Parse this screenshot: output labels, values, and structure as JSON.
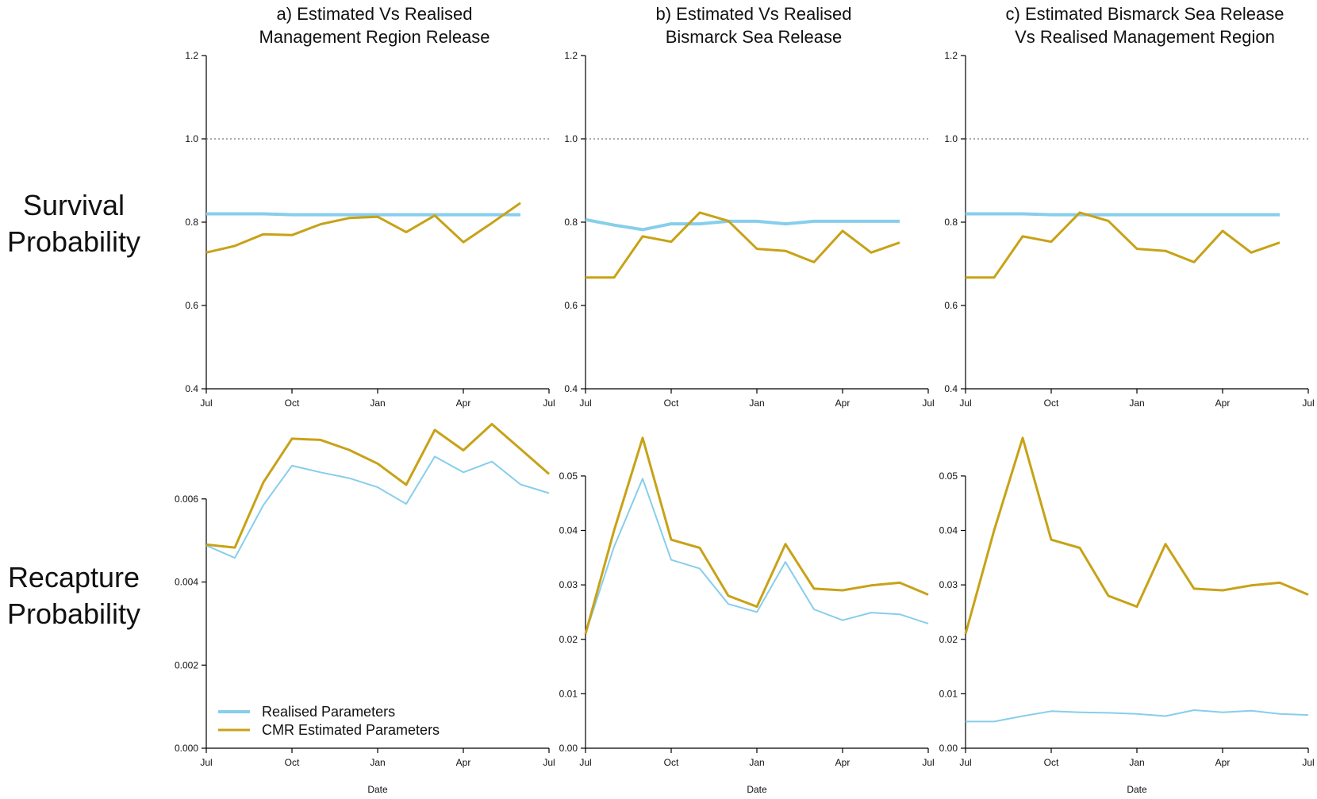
{
  "colors": {
    "realised": "#87CEEB",
    "estimated": "#C8A217",
    "axis": "#000000",
    "reference": "#777777"
  },
  "row_labels": [
    {
      "line1": "Survival",
      "line2": "Probability"
    },
    {
      "line1": "Recapture",
      "line2": "Probability"
    }
  ],
  "panel_titles": [
    {
      "line1": "a) Estimated Vs Realised",
      "line2": "Management Region Release"
    },
    {
      "line1": "b) Estimated Vs Realised",
      "line2": "Bismarck Sea Release"
    },
    {
      "line1": "c) Estimated Bismarck Sea Release",
      "line2": "Vs Realised Management Region"
    }
  ],
  "legend": {
    "realised": "Realised Parameters",
    "estimated": "CMR Estimated Parameters"
  },
  "chart_data": [
    {
      "id": "a-survival",
      "type": "line",
      "title": "a) Estimated Vs Realised Management Region Release",
      "xlabel": "",
      "ylabel": "Survival Probability",
      "xlim": [
        0,
        12
      ],
      "ylim": [
        0.4,
        1.2
      ],
      "x_ticks": [
        0,
        3,
        6,
        9,
        12
      ],
      "x_tick_labels": [
        "Jul",
        "Oct",
        "Jan",
        "Apr",
        "Jul"
      ],
      "y_ticks": [
        0.4,
        0.6,
        0.8,
        1.0,
        1.2
      ],
      "y_tick_labels": [
        "0.4",
        "0.6",
        "0.8",
        "1.0",
        "1.2"
      ],
      "reference_line": 1.0,
      "series": [
        {
          "name": "Realised Parameters",
          "key": "realised",
          "x": [
            0,
            1,
            2,
            3,
            4,
            5,
            6,
            7,
            8,
            9,
            10,
            11
          ],
          "values": [
            0.82,
            0.82,
            0.82,
            0.818,
            0.818,
            0.818,
            0.818,
            0.818,
            0.818,
            0.818,
            0.818,
            0.818
          ]
        },
        {
          "name": "CMR Estimated Parameters",
          "key": "estimated",
          "x": [
            0,
            1,
            2,
            3,
            4,
            5,
            6,
            7,
            8,
            9,
            10,
            11
          ],
          "values": [
            0.727,
            0.743,
            0.771,
            0.769,
            0.795,
            0.81,
            0.813,
            0.776,
            0.816,
            0.752,
            0.798,
            0.846
          ]
        }
      ]
    },
    {
      "id": "b-survival",
      "type": "line",
      "title": "b) Estimated Vs Realised Bismarck Sea Release",
      "xlabel": "",
      "ylabel": "",
      "xlim": [
        0,
        12
      ],
      "ylim": [
        0.4,
        1.2
      ],
      "x_ticks": [
        0,
        3,
        6,
        9,
        12
      ],
      "x_tick_labels": [
        "Jul",
        "Oct",
        "Jan",
        "Apr",
        "Jul"
      ],
      "y_ticks": [
        0.4,
        0.6,
        0.8,
        1.0,
        1.2
      ],
      "y_tick_labels": [
        "0.4",
        "0.6",
        "0.8",
        "1.0",
        "1.2"
      ],
      "reference_line": 1.0,
      "series": [
        {
          "name": "Realised Parameters",
          "key": "realised",
          "x": [
            0,
            1,
            2,
            3,
            4,
            5,
            6,
            7,
            8,
            9,
            10,
            11
          ],
          "values": [
            0.806,
            0.793,
            0.782,
            0.796,
            0.796,
            0.802,
            0.802,
            0.796,
            0.802,
            0.802,
            0.802,
            0.802
          ]
        },
        {
          "name": "CMR Estimated Parameters",
          "key": "estimated",
          "x": [
            0,
            1,
            2,
            3,
            4,
            5,
            6,
            7,
            8,
            9,
            10,
            11
          ],
          "values": [
            0.667,
            0.667,
            0.766,
            0.753,
            0.823,
            0.803,
            0.736,
            0.731,
            0.704,
            0.779,
            0.727,
            0.751
          ]
        }
      ]
    },
    {
      "id": "c-survival",
      "type": "line",
      "title": "c) Estimated Bismarck Sea Release Vs Realised Management Region",
      "xlabel": "",
      "ylabel": "",
      "xlim": [
        0,
        12
      ],
      "ylim": [
        0.4,
        1.2
      ],
      "x_ticks": [
        0,
        3,
        6,
        9,
        12
      ],
      "x_tick_labels": [
        "Jul",
        "Oct",
        "Jan",
        "Apr",
        "Jul"
      ],
      "y_ticks": [
        0.4,
        0.6,
        0.8,
        1.0,
        1.2
      ],
      "y_tick_labels": [
        "0.4",
        "0.6",
        "0.8",
        "1.0",
        "1.2"
      ],
      "reference_line": 1.0,
      "series": [
        {
          "name": "Realised Parameters",
          "key": "realised",
          "x": [
            0,
            1,
            2,
            3,
            4,
            5,
            6,
            7,
            8,
            9,
            10,
            11
          ],
          "values": [
            0.82,
            0.82,
            0.82,
            0.818,
            0.818,
            0.818,
            0.818,
            0.818,
            0.818,
            0.818,
            0.818,
            0.818
          ]
        },
        {
          "name": "CMR Estimated Parameters",
          "key": "estimated",
          "x": [
            0,
            1,
            2,
            3,
            4,
            5,
            6,
            7,
            8,
            9,
            10,
            11
          ],
          "values": [
            0.667,
            0.667,
            0.766,
            0.753,
            0.823,
            0.803,
            0.736,
            0.731,
            0.704,
            0.779,
            0.727,
            0.751
          ]
        }
      ]
    },
    {
      "id": "a-recapture",
      "type": "line",
      "title": "",
      "xlabel": "Date",
      "ylabel": "Recapture Probability",
      "xlim": [
        0,
        12
      ],
      "ylim": [
        0,
        0.0076
      ],
      "x_ticks": [
        0,
        3,
        6,
        9,
        12
      ],
      "x_tick_labels": [
        "Jul",
        "Oct",
        "Jan",
        "Apr",
        "Jul"
      ],
      "y_ticks": [
        0,
        0.002,
        0.004,
        0.006
      ],
      "y_tick_labels": [
        "0.000",
        "0.002",
        "0.004",
        "0.006"
      ],
      "series": [
        {
          "name": "Realised Parameters",
          "key": "realised",
          "x": [
            0,
            1,
            2,
            3,
            4,
            5,
            6,
            7,
            8,
            9,
            10,
            11,
            12
          ],
          "values": [
            0.00488,
            0.00458,
            0.00585,
            0.0068,
            0.00664,
            0.0065,
            0.00628,
            0.00588,
            0.00702,
            0.00664,
            0.0069,
            0.00635,
            0.00614
          ]
        },
        {
          "name": "CMR Estimated Parameters",
          "key": "estimated",
          "x": [
            0,
            1,
            2,
            3,
            4,
            5,
            6,
            7,
            8,
            9,
            10,
            11,
            12
          ],
          "values": [
            0.0049,
            0.00483,
            0.0064,
            0.00745,
            0.00742,
            0.00718,
            0.00685,
            0.00634,
            0.00766,
            0.00717,
            0.0078,
            0.0072,
            0.0066
          ]
        }
      ]
    },
    {
      "id": "b-recapture",
      "type": "line",
      "title": "",
      "xlabel": "Date",
      "ylabel": "",
      "xlim": [
        0,
        12
      ],
      "ylim": [
        0,
        0.058
      ],
      "x_ticks": [
        0,
        3,
        6,
        9,
        12
      ],
      "x_tick_labels": [
        "Jul",
        "Oct",
        "Jan",
        "Apr",
        "Jul"
      ],
      "y_ticks": [
        0,
        0.01,
        0.02,
        0.03,
        0.04,
        0.05
      ],
      "y_tick_labels": [
        "0.00",
        "0.01",
        "0.02",
        "0.03",
        "0.04",
        "0.05"
      ],
      "series": [
        {
          "name": "Realised Parameters",
          "key": "realised",
          "x": [
            0,
            1,
            2,
            3,
            4,
            5,
            6,
            7,
            8,
            9,
            10,
            11,
            12
          ],
          "values": [
            0.021,
            0.037,
            0.0495,
            0.0346,
            0.033,
            0.0265,
            0.025,
            0.0342,
            0.0255,
            0.0235,
            0.0249,
            0.0246,
            0.0229
          ]
        },
        {
          "name": "CMR Estimated Parameters",
          "key": "estimated",
          "x": [
            0,
            1,
            2,
            3,
            4,
            5,
            6,
            7,
            8,
            9,
            10,
            11,
            12
          ],
          "values": [
            0.021,
            0.04,
            0.057,
            0.0383,
            0.0368,
            0.028,
            0.026,
            0.0375,
            0.0293,
            0.029,
            0.0299,
            0.0304,
            0.0282
          ]
        }
      ]
    },
    {
      "id": "c-recapture",
      "type": "line",
      "title": "",
      "xlabel": "Date",
      "ylabel": "",
      "xlim": [
        0,
        12
      ],
      "ylim": [
        0,
        0.058
      ],
      "x_ticks": [
        0,
        3,
        6,
        9,
        12
      ],
      "x_tick_labels": [
        "Jul",
        "Oct",
        "Jan",
        "Apr",
        "Jul"
      ],
      "y_ticks": [
        0,
        0.01,
        0.02,
        0.03,
        0.04,
        0.05
      ],
      "y_tick_labels": [
        "0.00",
        "0.01",
        "0.02",
        "0.03",
        "0.04",
        "0.05"
      ],
      "series": [
        {
          "name": "Realised Parameters",
          "key": "realised",
          "x": [
            0,
            1,
            2,
            3,
            4,
            5,
            6,
            7,
            8,
            9,
            10,
            11,
            12
          ],
          "values": [
            0.0049,
            0.0049,
            0.0059,
            0.0068,
            0.0066,
            0.0065,
            0.0063,
            0.0059,
            0.007,
            0.0066,
            0.0069,
            0.0063,
            0.0061
          ]
        },
        {
          "name": "CMR Estimated Parameters",
          "key": "estimated",
          "x": [
            0,
            1,
            2,
            3,
            4,
            5,
            6,
            7,
            8,
            9,
            10,
            11,
            12
          ],
          "values": [
            0.021,
            0.04,
            0.057,
            0.0383,
            0.0368,
            0.028,
            0.026,
            0.0375,
            0.0293,
            0.029,
            0.0299,
            0.0304,
            0.0282
          ]
        }
      ]
    }
  ]
}
